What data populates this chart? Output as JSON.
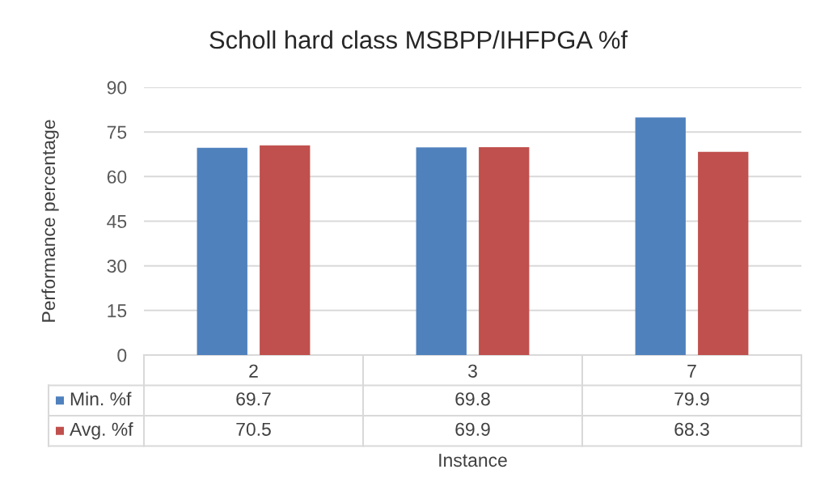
{
  "chart_data": {
    "type": "bar",
    "title": "Scholl hard class MSBPP/IHFPGA %f",
    "xlabel": "Instance",
    "ylabel": "Performance percentage",
    "categories": [
      "2",
      "3",
      "7"
    ],
    "series": [
      {
        "name": "Min. %f",
        "color": "#4f81bd",
        "values": [
          69.7,
          69.8,
          79.9
        ]
      },
      {
        "name": "Avg. %f",
        "color": "#c0504d",
        "values": [
          70.5,
          69.9,
          68.3
        ]
      }
    ],
    "ylim": [
      0,
      90
    ],
    "yticks": [
      0,
      15,
      30,
      45,
      60,
      75,
      90
    ],
    "grid": "y",
    "legend": "bottom left",
    "data_labels": true
  }
}
